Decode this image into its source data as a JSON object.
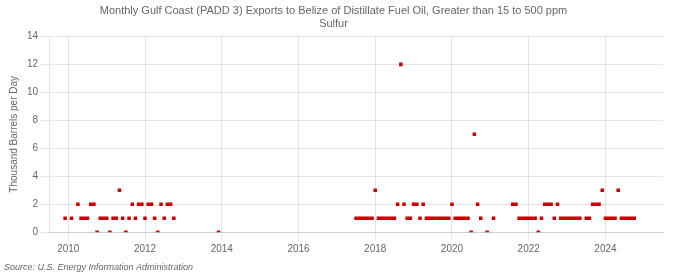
{
  "chart_data": {
    "type": "scatter",
    "title": "Monthly Gulf Coast (PADD 3) Exports to Belize of Distillate Fuel Oil, Greater than 15 to 500 ppm\nSulfur",
    "y_label": "Thousand Barrels per Day",
    "annotations": [
      "Source: U.S. Energy Information Administration"
    ],
    "color": "#cc0000",
    "marker": "square",
    "grid": true,
    "x": [
      2009.917,
      2010.083,
      2010.25,
      2010.333,
      2010.417,
      2010.5,
      2010.583,
      2010.667,
      2010.75,
      2010.833,
      2010.917,
      2011.0,
      2011.083,
      2011.167,
      2011.25,
      2011.333,
      2011.417,
      2011.5,
      2011.583,
      2011.667,
      2011.75,
      2011.833,
      2011.917,
      2012.0,
      2012.083,
      2012.167,
      2012.25,
      2012.333,
      2012.417,
      2012.5,
      2012.583,
      2012.667,
      2012.75,
      2013.917,
      2017.5,
      2017.583,
      2017.667,
      2017.75,
      2017.833,
      2017.917,
      2018.0,
      2018.083,
      2018.167,
      2018.25,
      2018.333,
      2018.417,
      2018.5,
      2018.583,
      2018.667,
      2018.75,
      2018.833,
      2018.917,
      2019.0,
      2019.083,
      2019.167,
      2019.25,
      2019.333,
      2019.417,
      2019.5,
      2019.583,
      2019.667,
      2019.75,
      2019.833,
      2019.917,
      2020.0,
      2020.083,
      2020.167,
      2020.25,
      2020.333,
      2020.417,
      2020.5,
      2020.583,
      2020.667,
      2020.75,
      2020.917,
      2021.083,
      2021.583,
      2021.667,
      2021.75,
      2021.833,
      2021.917,
      2022.0,
      2022.083,
      2022.167,
      2022.25,
      2022.333,
      2022.417,
      2022.5,
      2022.583,
      2022.667,
      2022.75,
      2022.833,
      2022.917,
      2023.0,
      2023.083,
      2023.167,
      2023.25,
      2023.333,
      2023.5,
      2023.583,
      2023.667,
      2023.75,
      2023.833,
      2023.917,
      2024.0,
      2024.083,
      2024.167,
      2024.25,
      2024.333,
      2024.417,
      2024.5,
      2024.583,
      2024.667,
      2024.75
    ],
    "values": [
      1,
      1,
      2,
      1,
      1,
      1,
      2,
      2,
      0,
      1,
      1,
      1,
      0,
      1,
      1,
      3,
      1,
      0,
      1,
      2,
      1,
      2,
      2,
      1,
      2,
      2,
      1,
      0,
      2,
      1,
      2,
      2,
      1,
      0,
      1,
      1,
      1,
      1,
      1,
      1,
      3,
      1,
      1,
      1,
      1,
      1,
      1,
      2,
      12,
      2,
      1,
      1,
      2,
      2,
      1,
      2,
      1,
      1,
      1,
      1,
      1,
      1,
      1,
      1,
      2,
      1,
      1,
      1,
      1,
      1,
      0,
      7,
      2,
      1,
      0,
      1,
      2,
      2,
      1,
      1,
      1,
      1,
      1,
      1,
      0,
      1,
      2,
      2,
      2,
      1,
      2,
      1,
      1,
      1,
      1,
      1,
      1,
      1,
      1,
      1,
      2,
      2,
      2,
      3,
      1,
      1,
      1,
      1,
      3,
      1,
      1,
      1,
      1,
      1
    ],
    "xlim": [
      2009.5,
      2025.5
    ],
    "xticks": [
      2010,
      2012,
      2014,
      2016,
      2018,
      2020,
      2022,
      2024
    ],
    "ylim": [
      0,
      14
    ],
    "yticks": [
      0,
      2,
      4,
      6,
      8,
      10,
      12,
      14
    ]
  }
}
